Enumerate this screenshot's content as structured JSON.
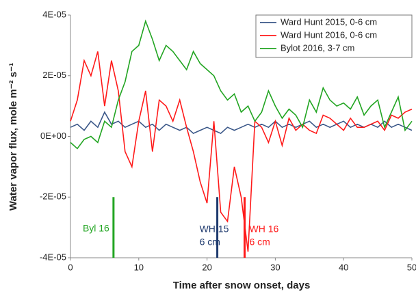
{
  "chart_data": {
    "type": "line",
    "x_label": "Time after snow onset, days",
    "y_label": "Water vapor flux,  mole m⁻² s⁻¹",
    "x": [
      0,
      1,
      2,
      3,
      4,
      5,
      6,
      7,
      8,
      9,
      10,
      11,
      12,
      13,
      14,
      15,
      16,
      17,
      18,
      19,
      20,
      21,
      22,
      23,
      24,
      25,
      26,
      27,
      28,
      29,
      30,
      31,
      32,
      33,
      34,
      35,
      36,
      37,
      38,
      39,
      40,
      41,
      42,
      43,
      44,
      45,
      46,
      47,
      48,
      49,
      50
    ],
    "series": [
      {
        "name": "Ward Hunt 2015, 0-6 cm",
        "color": "#3a5788",
        "values": [
          3e-06,
          4e-06,
          2e-06,
          5e-06,
          3e-06,
          8e-06,
          4e-06,
          5e-06,
          3e-06,
          4e-06,
          5e-06,
          3e-06,
          4e-06,
          2e-06,
          4e-06,
          3e-06,
          2e-06,
          3e-06,
          1e-06,
          2e-06,
          3e-06,
          2e-06,
          1e-06,
          3e-06,
          2e-06,
          3e-06,
          4e-06,
          3e-06,
          4e-06,
          3e-06,
          5e-06,
          3e-06,
          4e-06,
          3e-06,
          4e-06,
          5e-06,
          3e-06,
          4e-06,
          3e-06,
          4e-06,
          5e-06,
          3e-06,
          4e-06,
          3e-06,
          4e-06,
          3e-06,
          5e-06,
          3e-06,
          4e-06,
          3e-06,
          2e-06
        ]
      },
      {
        "name": "Ward Hunt 2016, 0-6 cm",
        "color": "#ff1a1a",
        "values": [
          5e-06,
          1.2e-05,
          2.5e-05,
          2e-05,
          2.8e-05,
          1e-05,
          2.5e-05,
          1.5e-05,
          -5e-06,
          -1e-05,
          5e-06,
          1.5e-05,
          -5e-06,
          1.2e-05,
          1e-05,
          5e-06,
          1.2e-05,
          3e-06,
          -5e-06,
          -1.5e-05,
          -2.2e-05,
          5e-06,
          -2.5e-05,
          -2.8e-05,
          -1e-05,
          -2e-05,
          -3.8e-05,
          5e-06,
          3e-06,
          -2e-06,
          5e-06,
          -3e-06,
          6e-06,
          2e-06,
          4e-06,
          2e-06,
          1e-06,
          7e-06,
          6e-06,
          4e-06,
          2e-06,
          6e-06,
          3e-06,
          3e-06,
          4e-06,
          5e-06,
          2e-06,
          7e-06,
          6e-06,
          8e-06,
          9e-06
        ]
      },
      {
        "name": "Bylot 2016, 3-7 cm",
        "color": "#22a522",
        "values": [
          -2e-06,
          -4e-06,
          -1e-06,
          0,
          -2e-06,
          5e-06,
          3e-06,
          1.2e-05,
          1.8e-05,
          2.8e-05,
          3e-05,
          3.8e-05,
          3.2e-05,
          2.5e-05,
          3e-05,
          2.8e-05,
          2.5e-05,
          2.2e-05,
          2.8e-05,
          2.4e-05,
          2.2e-05,
          2e-05,
          1.5e-05,
          1.2e-05,
          1.4e-05,
          8e-06,
          1e-05,
          5e-06,
          8e-06,
          1.5e-05,
          1e-05,
          6e-06,
          9e-06,
          7e-06,
          3e-06,
          1.2e-05,
          8e-06,
          1.6e-05,
          1.2e-05,
          1e-05,
          1.1e-05,
          9e-06,
          1.3e-05,
          7e-06,
          1e-05,
          1.2e-05,
          3e-06,
          8e-06,
          1.3e-05,
          2e-06,
          5e-06
        ]
      }
    ],
    "xlim": [
      0,
      50
    ],
    "xticks": [
      0,
      10,
      20,
      30,
      40,
      50
    ],
    "ylim": [
      -4e-05,
      4e-05
    ],
    "yticks": [
      {
        "value": -4e-05,
        "label": "-4E-05"
      },
      {
        "value": -2e-05,
        "label": "-2E-05"
      },
      {
        "value": 0,
        "label": "0E+00"
      },
      {
        "value": 2e-05,
        "label": "2E-05"
      },
      {
        "value": 4e-05,
        "label": "4E-05"
      }
    ],
    "legend": "upper right",
    "annotations": [
      {
        "text": [
          "Byl 16"
        ],
        "x": 6.3,
        "y": [
          -4e-05,
          -2e-05
        ],
        "color": "#22a522"
      },
      {
        "text": [
          "WH 15",
          "6 cm"
        ],
        "x": 21.5,
        "y": [
          -4e-05,
          -2e-05
        ],
        "color": "#1f3a6e"
      },
      {
        "text": [
          "WH 16",
          "6 cm"
        ],
        "x": 25.5,
        "y": [
          -4e-05,
          -2e-05
        ],
        "color": "#ff1a1a"
      }
    ]
  }
}
